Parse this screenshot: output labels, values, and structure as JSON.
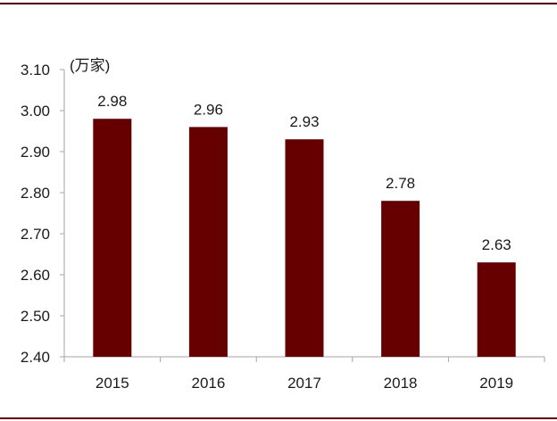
{
  "chart_data": {
    "type": "bar",
    "unit_label": "(万家)",
    "categories": [
      "2015",
      "2016",
      "2017",
      "2018",
      "2019"
    ],
    "values": [
      2.98,
      2.96,
      2.93,
      2.78,
      2.63
    ],
    "data_labels": [
      "2.98",
      "2.96",
      "2.93",
      "2.78",
      "2.63"
    ],
    "y_ticks": [
      "2.40",
      "2.50",
      "2.60",
      "2.70",
      "2.80",
      "2.90",
      "3.00",
      "3.10"
    ],
    "ylim": [
      2.4,
      3.1
    ],
    "grid": false,
    "legend": "none",
    "bar_color": "#660000",
    "frame_color": "#6b0000"
  }
}
